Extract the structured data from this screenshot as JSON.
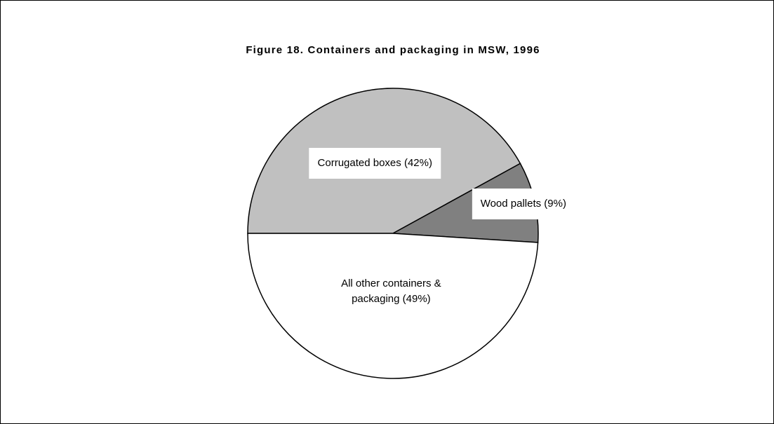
{
  "chart_data": {
    "type": "pie",
    "title": "Figure 18. Containers and packaging in MSW, 1996",
    "categories": [
      "Corrugated boxes (42%)",
      "Wood pallets (9%)",
      "All other containers & packaging (49%)"
    ],
    "values": [
      42,
      9,
      49
    ],
    "colors": [
      "#c0c0c0",
      "#808080",
      "#ffffff"
    ]
  }
}
